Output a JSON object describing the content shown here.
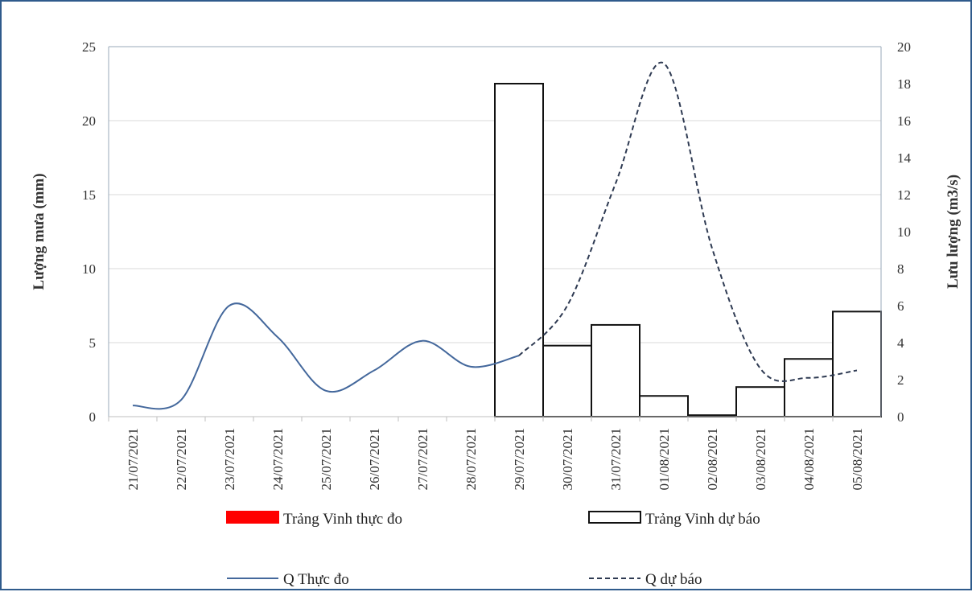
{
  "chart_data": {
    "type": "bar+line",
    "title": "",
    "categories": [
      "21/07/2021",
      "22/07/2021",
      "23/07/2021",
      "24/07/2021",
      "25/07/2021",
      "26/07/2021",
      "27/07/2021",
      "28/07/2021",
      "29/07/2021",
      "30/07/2021",
      "31/07/2021",
      "01/08/2021",
      "02/08/2021",
      "03/08/2021",
      "04/08/2021",
      "05/08/2021"
    ],
    "ylabel_left": "Lượng mưa (mm)",
    "ylabel_right": "Lưu lượng (m3/s)",
    "ylim_left": [
      0,
      25
    ],
    "yticks_left": [
      0,
      5,
      10,
      15,
      20,
      25
    ],
    "ylim_right": [
      0,
      20
    ],
    "yticks_right": [
      0,
      2,
      4,
      6,
      8,
      10,
      12,
      14,
      16,
      18,
      20
    ],
    "grid": true,
    "legend_position": "bottom",
    "series": [
      {
        "name": "Trảng Vinh thực đo",
        "kind": "bar",
        "axis": "left",
        "color": "#ff0000",
        "values": [
          0,
          0,
          0,
          0,
          0,
          0,
          0,
          0,
          0,
          0,
          0,
          0,
          0,
          0,
          0,
          0
        ]
      },
      {
        "name": "Trảng Vinh dự báo",
        "kind": "bar",
        "axis": "left",
        "color": "#ffffff",
        "stroke": "#111111",
        "values": [
          null,
          null,
          null,
          null,
          null,
          null,
          null,
          null,
          22.5,
          4.8,
          6.2,
          1.4,
          0.1,
          2.0,
          3.9,
          7.1
        ]
      },
      {
        "name": "Q Thực đo",
        "kind": "line",
        "axis": "right",
        "color": "#44689c",
        "values": [
          0.6,
          0.9,
          6.0,
          4.3,
          1.4,
          2.5,
          4.1,
          2.7,
          3.3,
          null,
          null,
          null,
          null,
          null,
          null,
          null
        ]
      },
      {
        "name": "Q dự báo",
        "kind": "line-dashed",
        "axis": "right",
        "color": "#2e3a52",
        "values": [
          null,
          null,
          null,
          null,
          null,
          null,
          null,
          null,
          3.3,
          6.0,
          12.6,
          19.1,
          9.1,
          2.6,
          2.1,
          2.5
        ]
      }
    ]
  }
}
